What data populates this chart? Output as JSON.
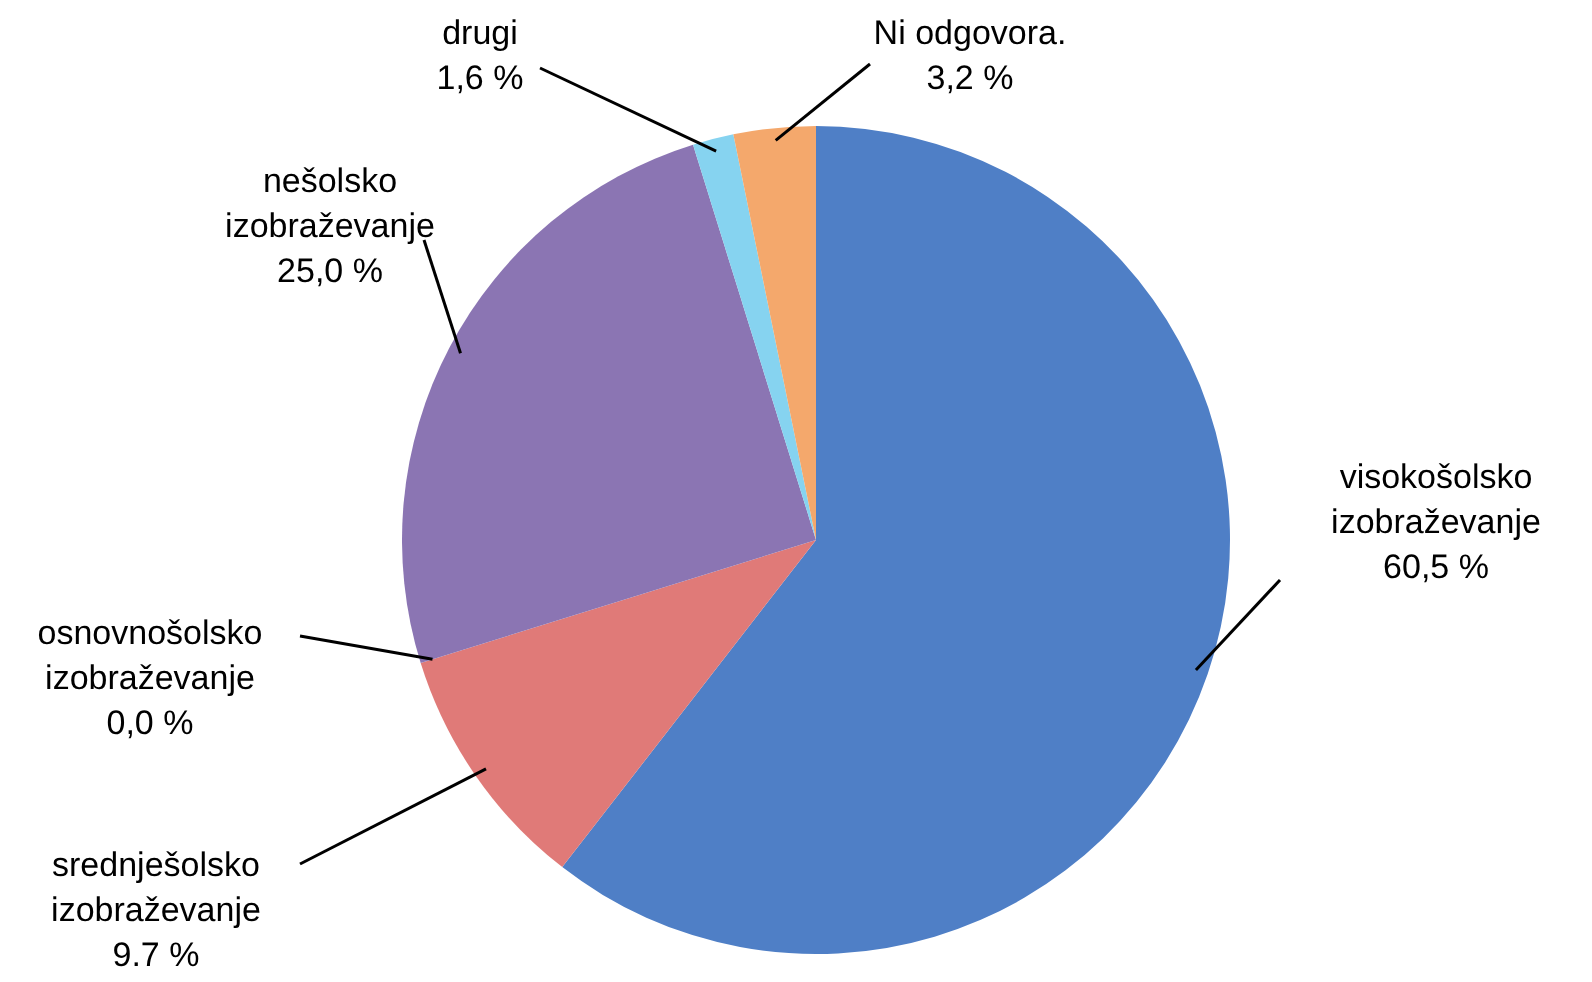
{
  "chart_data": {
    "type": "pie",
    "categories": [
      "visokošolsko izobraževanje",
      "srednješolsko izobraževanje",
      "osnovnošolsko izobraževanje",
      "nešolsko izobraževanje",
      "drugi",
      "Ni odgovora."
    ],
    "values": [
      60.5,
      9.7,
      0.0,
      25.0,
      1.6,
      3.2
    ],
    "value_labels": [
      "60,5 %",
      "9.7 %",
      "0,0 %",
      "25,0 %",
      "1,6 %",
      "3,2 %"
    ],
    "colors": [
      "#4f7fc6",
      "#e07a78",
      "#8fb04a",
      "#8b75b3",
      "#86d3f0",
      "#f4a86c"
    ]
  }
}
